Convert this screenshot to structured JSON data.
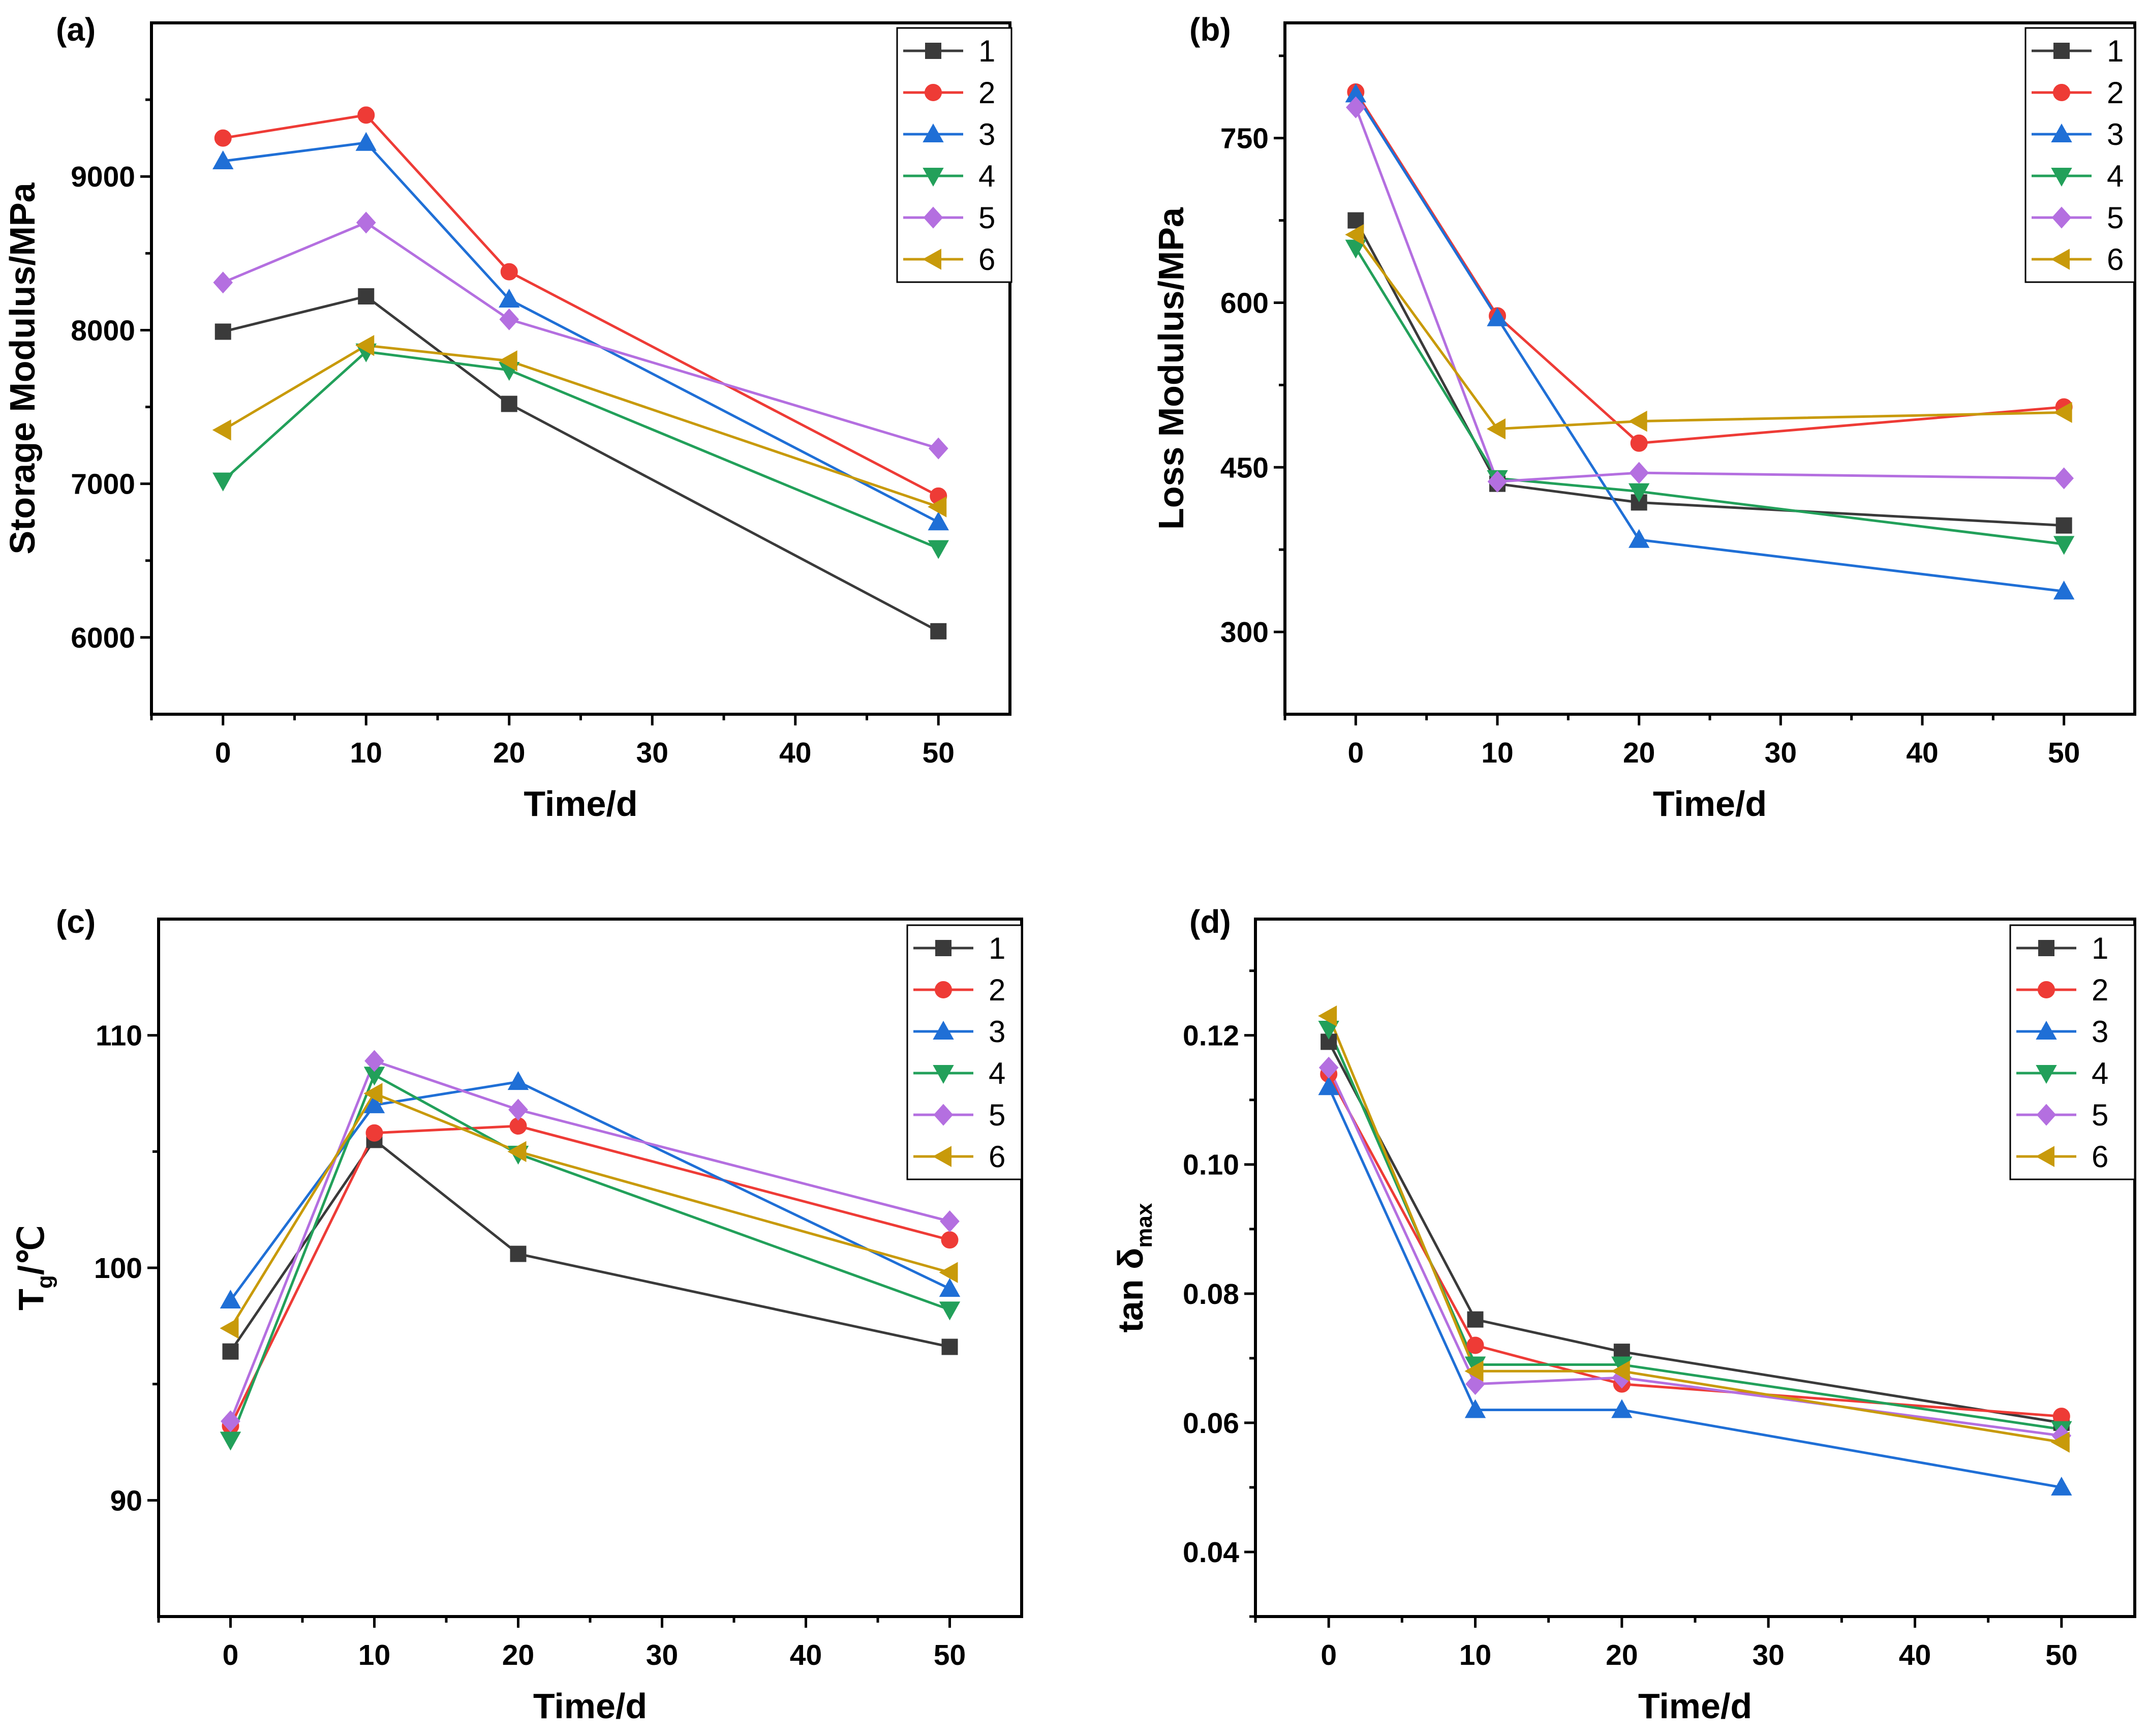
{
  "colors": {
    "1": "#3a3a3a",
    "2": "#ee3b36",
    "3": "#1f6fd6",
    "4": "#22a05a",
    "5": "#b46fe0",
    "6": "#c89a0a"
  },
  "legend_labels": [
    "1",
    "2",
    "3",
    "4",
    "5",
    "6"
  ],
  "markers": [
    "square",
    "circle",
    "triangle-up",
    "triangle-down",
    "diamond",
    "triangle-left"
  ],
  "chart_data": [
    {
      "id": "a",
      "type": "line",
      "panel_label": "(a)",
      "xlabel": "Time/d",
      "ylabel": "Storage Modulus/MPa",
      "xlim": [
        -5,
        55
      ],
      "ylim": [
        5500,
        10000
      ],
      "xticks": [
        0,
        10,
        20,
        30,
        40,
        50
      ],
      "xtick_labels": [
        "0",
        "10",
        "20",
        "30",
        "40",
        "50"
      ],
      "yticks": [
        6000,
        7000,
        8000,
        9000
      ],
      "ytick_labels": [
        "6000",
        "7000",
        "8000",
        "9000"
      ],
      "x": [
        0,
        10,
        20,
        50
      ],
      "series": [
        {
          "name": "1",
          "values": [
            7990,
            8220,
            7520,
            6040
          ]
        },
        {
          "name": "2",
          "values": [
            9250,
            9400,
            8380,
            6920
          ]
        },
        {
          "name": "3",
          "values": [
            9100,
            9220,
            8200,
            6750
          ]
        },
        {
          "name": "4",
          "values": [
            7020,
            7860,
            7740,
            6580
          ]
        },
        {
          "name": "5",
          "values": [
            8310,
            8700,
            8070,
            7230
          ]
        },
        {
          "name": "6",
          "values": [
            7350,
            7900,
            7800,
            6850
          ]
        }
      ]
    },
    {
      "id": "b",
      "type": "line",
      "panel_label": "(b)",
      "xlabel": "Time/d",
      "ylabel": "Loss Modulus/MPa",
      "xlim": [
        -5,
        55
      ],
      "ylim": [
        225,
        855
      ],
      "xticks": [
        0,
        10,
        20,
        30,
        40,
        50
      ],
      "xtick_labels": [
        "0",
        "10",
        "20",
        "30",
        "40",
        "50"
      ],
      "yticks": [
        300,
        450,
        600,
        750
      ],
      "ytick_labels": [
        "300",
        "450",
        "600",
        "750"
      ],
      "x": [
        0,
        10,
        20,
        50
      ],
      "series": [
        {
          "name": "1",
          "values": [
            675,
            435,
            418,
            397
          ]
        },
        {
          "name": "2",
          "values": [
            792,
            588,
            472,
            505
          ]
        },
        {
          "name": "3",
          "values": [
            790,
            586,
            384,
            337
          ]
        },
        {
          "name": "4",
          "values": [
            650,
            440,
            428,
            380
          ]
        },
        {
          "name": "5",
          "values": [
            778,
            437,
            445,
            440
          ]
        },
        {
          "name": "6",
          "values": [
            662,
            485,
            492,
            500
          ]
        }
      ]
    },
    {
      "id": "c",
      "type": "line",
      "panel_label": "(c)",
      "xlabel": "Time/d",
      "ylabel_main": "T",
      "ylabel_sub": "g",
      "ylabel_unit": "/℃",
      "xlim": [
        -5,
        55
      ],
      "ylim": [
        85,
        115
      ],
      "xticks": [
        0,
        10,
        20,
        30,
        40,
        50
      ],
      "xtick_labels": [
        "0",
        "10",
        "20",
        "30",
        "40",
        "50"
      ],
      "yticks": [
        90,
        100,
        110
      ],
      "ytick_labels": [
        "90",
        "100",
        "110"
      ],
      "x": [
        0,
        10,
        20,
        50
      ],
      "series": [
        {
          "name": "1",
          "values": [
            96.4,
            105.5,
            100.6,
            96.6
          ]
        },
        {
          "name": "2",
          "values": [
            93.2,
            105.8,
            106.1,
            101.2
          ]
        },
        {
          "name": "3",
          "values": [
            98.6,
            107.0,
            108.0,
            99.1
          ]
        },
        {
          "name": "4",
          "values": [
            92.6,
            108.3,
            104.9,
            98.2
          ]
        },
        {
          "name": "5",
          "values": [
            93.4,
            108.9,
            106.8,
            102.0
          ]
        },
        {
          "name": "6",
          "values": [
            97.4,
            107.5,
            105.0,
            99.8
          ]
        }
      ]
    },
    {
      "id": "d",
      "type": "line",
      "panel_label": "(d)",
      "xlabel": "Time/d",
      "ylabel_main": "tan δ",
      "ylabel_sub": "max",
      "xlim": [
        -5,
        55
      ],
      "ylim": [
        0.03,
        0.138
      ],
      "xticks": [
        0,
        10,
        20,
        30,
        40,
        50
      ],
      "xtick_labels": [
        "0",
        "10",
        "20",
        "30",
        "40",
        "50"
      ],
      "yticks": [
        0.04,
        0.06,
        0.08,
        0.1,
        0.12
      ],
      "ytick_labels": [
        "0.04",
        "0.06",
        "0.08",
        "0.10",
        "0.12"
      ],
      "x": [
        0,
        10,
        20,
        50
      ],
      "series": [
        {
          "name": "1",
          "values": [
            0.119,
            0.076,
            0.071,
            0.06
          ]
        },
        {
          "name": "2",
          "values": [
            0.114,
            0.072,
            0.066,
            0.061
          ]
        },
        {
          "name": "3",
          "values": [
            0.112,
            0.062,
            0.062,
            0.05
          ]
        },
        {
          "name": "4",
          "values": [
            0.121,
            0.069,
            0.069,
            0.059
          ]
        },
        {
          "name": "5",
          "values": [
            0.115,
            0.066,
            0.067,
            0.058
          ]
        },
        {
          "name": "6",
          "values": [
            0.123,
            0.068,
            0.068,
            0.057
          ]
        }
      ]
    }
  ]
}
